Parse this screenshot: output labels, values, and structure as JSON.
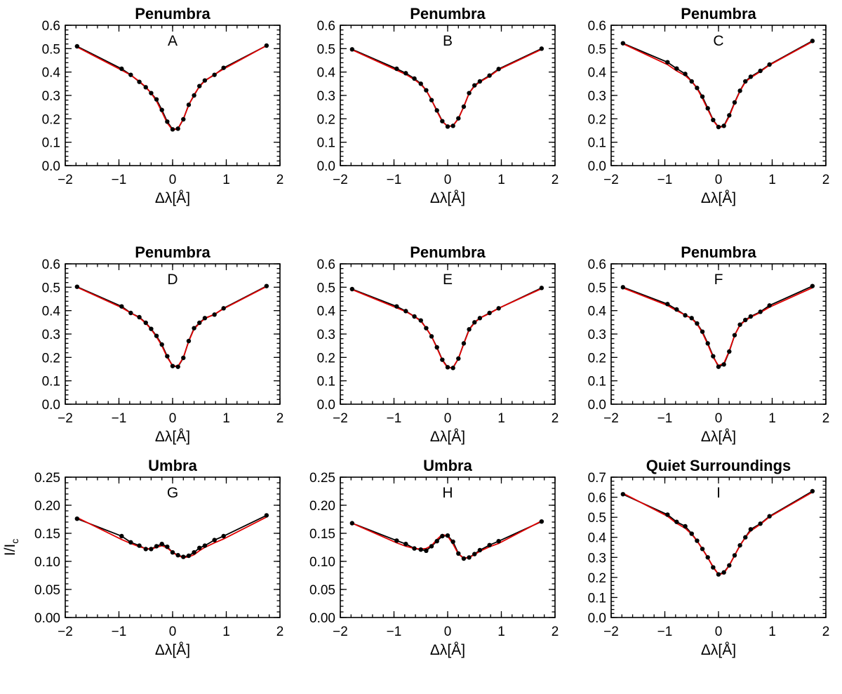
{
  "chart_data": [
    {
      "type": "line",
      "title": "Penumbra",
      "letter": "A",
      "xlabel": "Δλ[Å]",
      "ylabel": "",
      "xlim": [
        -2,
        2
      ],
      "ylim": [
        0,
        0.6
      ],
      "xticks": [
        "−2",
        "−1",
        "0",
        "1",
        "2"
      ],
      "yticks": [
        "0.0",
        "0.1",
        "0.2",
        "0.3",
        "0.4",
        "0.5",
        "0.6"
      ],
      "x": [
        -1.78,
        -0.95,
        -0.78,
        -0.62,
        -0.5,
        -0.4,
        -0.3,
        -0.2,
        -0.1,
        0.0,
        0.1,
        0.2,
        0.3,
        0.4,
        0.5,
        0.6,
        0.78,
        0.95,
        1.75
      ],
      "series": [
        {
          "name": "observed",
          "values": [
            0.51,
            0.414,
            0.388,
            0.358,
            0.335,
            0.31,
            0.283,
            0.238,
            0.188,
            0.155,
            0.158,
            0.198,
            0.26,
            0.3,
            0.34,
            0.364,
            0.388,
            0.418,
            0.513
          ]
        },
        {
          "name": "fit",
          "values": [
            0.507,
            0.408,
            0.387,
            0.36,
            0.336,
            0.31,
            0.276,
            0.23,
            0.182,
            0.152,
            0.158,
            0.2,
            0.258,
            0.303,
            0.338,
            0.362,
            0.39,
            0.413,
            0.513
          ]
        }
      ]
    },
    {
      "type": "line",
      "title": "Penumbra",
      "letter": "B",
      "xlabel": "Δλ[Å]",
      "ylabel": "",
      "xlim": [
        -2,
        2
      ],
      "ylim": [
        0,
        0.6
      ],
      "xticks": [
        "−2",
        "−1",
        "0",
        "1",
        "2"
      ],
      "yticks": [
        "0.0",
        "0.1",
        "0.2",
        "0.3",
        "0.4",
        "0.5",
        "0.6"
      ],
      "x": [
        -1.78,
        -0.95,
        -0.78,
        -0.62,
        -0.5,
        -0.4,
        -0.3,
        -0.2,
        -0.1,
        0.0,
        0.1,
        0.2,
        0.3,
        0.4,
        0.5,
        0.6,
        0.78,
        0.95,
        1.75
      ],
      "series": [
        {
          "name": "observed",
          "values": [
            0.497,
            0.414,
            0.395,
            0.372,
            0.35,
            0.322,
            0.28,
            0.236,
            0.19,
            0.167,
            0.17,
            0.202,
            0.252,
            0.31,
            0.343,
            0.36,
            0.385,
            0.413,
            0.5
          ]
        },
        {
          "name": "fit",
          "values": [
            0.495,
            0.408,
            0.39,
            0.368,
            0.347,
            0.322,
            0.282,
            0.232,
            0.188,
            0.168,
            0.171,
            0.2,
            0.253,
            0.31,
            0.34,
            0.358,
            0.382,
            0.41,
            0.497
          ]
        }
      ]
    },
    {
      "type": "line",
      "title": "Penumbra",
      "letter": "C",
      "xlabel": "Δλ[Å]",
      "ylabel": "",
      "xlim": [
        -2,
        2
      ],
      "ylim": [
        0,
        0.6
      ],
      "xticks": [
        "−2",
        "−1",
        "0",
        "1",
        "2"
      ],
      "yticks": [
        "0.0",
        "0.1",
        "0.2",
        "0.3",
        "0.4",
        "0.5",
        "0.6"
      ],
      "x": [
        -1.78,
        -0.95,
        -0.78,
        -0.62,
        -0.5,
        -0.4,
        -0.3,
        -0.2,
        -0.1,
        0.0,
        0.1,
        0.2,
        0.3,
        0.4,
        0.5,
        0.6,
        0.78,
        0.95,
        1.75
      ],
      "series": [
        {
          "name": "observed",
          "values": [
            0.523,
            0.442,
            0.415,
            0.392,
            0.36,
            0.332,
            0.295,
            0.245,
            0.195,
            0.165,
            0.17,
            0.215,
            0.27,
            0.32,
            0.36,
            0.38,
            0.405,
            0.432,
            0.533
          ]
        },
        {
          "name": "fit",
          "values": [
            0.521,
            0.432,
            0.405,
            0.385,
            0.36,
            0.33,
            0.288,
            0.24,
            0.193,
            0.163,
            0.168,
            0.21,
            0.268,
            0.318,
            0.358,
            0.376,
            0.402,
            0.43,
            0.53
          ]
        }
      ]
    },
    {
      "type": "line",
      "title": "Penumbra",
      "letter": "D",
      "xlabel": "Δλ[Å]",
      "ylabel": "",
      "xlim": [
        -2,
        2
      ],
      "ylim": [
        0,
        0.6
      ],
      "xticks": [
        "−2",
        "−1",
        "0",
        "1",
        "2"
      ],
      "yticks": [
        "0.0",
        "0.1",
        "0.2",
        "0.3",
        "0.4",
        "0.5",
        "0.6"
      ],
      "x": [
        -1.78,
        -0.95,
        -0.78,
        -0.62,
        -0.5,
        -0.4,
        -0.3,
        -0.2,
        -0.1,
        0.0,
        0.1,
        0.2,
        0.3,
        0.4,
        0.5,
        0.6,
        0.78,
        0.95,
        1.75
      ],
      "series": [
        {
          "name": "observed",
          "values": [
            0.502,
            0.418,
            0.39,
            0.372,
            0.348,
            0.322,
            0.292,
            0.255,
            0.205,
            0.163,
            0.16,
            0.198,
            0.27,
            0.325,
            0.348,
            0.368,
            0.383,
            0.41,
            0.505
          ]
        },
        {
          "name": "fit",
          "values": [
            0.5,
            0.413,
            0.39,
            0.37,
            0.346,
            0.32,
            0.288,
            0.25,
            0.2,
            0.165,
            0.162,
            0.2,
            0.268,
            0.322,
            0.346,
            0.366,
            0.385,
            0.408,
            0.503
          ]
        }
      ]
    },
    {
      "type": "line",
      "title": "Penumbra",
      "letter": "E",
      "xlabel": "Δλ[Å]",
      "ylabel": "",
      "xlim": [
        -2,
        2
      ],
      "ylim": [
        0,
        0.6
      ],
      "xticks": [
        "−2",
        "−1",
        "0",
        "1",
        "2"
      ],
      "yticks": [
        "0.0",
        "0.1",
        "0.2",
        "0.3",
        "0.4",
        "0.5",
        "0.6"
      ],
      "x": [
        -1.78,
        -0.95,
        -0.78,
        -0.62,
        -0.5,
        -0.4,
        -0.3,
        -0.2,
        -0.1,
        0.0,
        0.1,
        0.2,
        0.3,
        0.4,
        0.5,
        0.6,
        0.78,
        0.95,
        1.75
      ],
      "series": [
        {
          "name": "observed",
          "values": [
            0.492,
            0.418,
            0.398,
            0.375,
            0.358,
            0.325,
            0.29,
            0.243,
            0.19,
            0.158,
            0.155,
            0.195,
            0.26,
            0.32,
            0.35,
            0.368,
            0.39,
            0.41,
            0.497
          ]
        },
        {
          "name": "fit",
          "values": [
            0.49,
            0.412,
            0.396,
            0.375,
            0.355,
            0.325,
            0.29,
            0.24,
            0.188,
            0.155,
            0.157,
            0.195,
            0.258,
            0.318,
            0.348,
            0.368,
            0.388,
            0.41,
            0.494
          ]
        }
      ]
    },
    {
      "type": "line",
      "title": "Penumbra",
      "letter": "F",
      "xlabel": "Δλ[Å]",
      "ylabel": "",
      "xlim": [
        -2,
        2
      ],
      "ylim": [
        0,
        0.6
      ],
      "xticks": [
        "−2",
        "−1",
        "0",
        "1",
        "2"
      ],
      "yticks": [
        "0.0",
        "0.1",
        "0.2",
        "0.3",
        "0.4",
        "0.5",
        "0.6"
      ],
      "x": [
        -1.78,
        -0.95,
        -0.78,
        -0.62,
        -0.5,
        -0.4,
        -0.3,
        -0.2,
        -0.1,
        0.0,
        0.1,
        0.2,
        0.3,
        0.4,
        0.5,
        0.6,
        0.78,
        0.95,
        1.75
      ],
      "series": [
        {
          "name": "observed",
          "values": [
            0.5,
            0.428,
            0.405,
            0.38,
            0.368,
            0.345,
            0.31,
            0.26,
            0.205,
            0.16,
            0.17,
            0.225,
            0.295,
            0.34,
            0.36,
            0.375,
            0.395,
            0.422,
            0.505
          ]
        },
        {
          "name": "fit",
          "values": [
            0.497,
            0.422,
            0.4,
            0.381,
            0.366,
            0.343,
            0.305,
            0.256,
            0.2,
            0.165,
            0.175,
            0.228,
            0.295,
            0.338,
            0.358,
            0.372,
            0.392,
            0.415,
            0.498
          ]
        }
      ]
    },
    {
      "type": "line",
      "title": "Umbra",
      "letter": "G",
      "xlabel": "Δλ[Å]",
      "ylabel": "I/I",
      "ylabel_sub": "c",
      "xlim": [
        -2,
        2
      ],
      "ylim": [
        0,
        0.25
      ],
      "xticks": [
        "−2",
        "−1",
        "0",
        "1",
        "2"
      ],
      "yticks": [
        "0.00",
        "0.05",
        "0.10",
        "0.15",
        "0.20",
        "0.25"
      ],
      "x": [
        -1.78,
        -0.95,
        -0.78,
        -0.62,
        -0.5,
        -0.4,
        -0.3,
        -0.2,
        -0.1,
        0.0,
        0.1,
        0.2,
        0.3,
        0.4,
        0.5,
        0.6,
        0.78,
        0.95,
        1.75
      ],
      "series": [
        {
          "name": "observed",
          "values": [
            0.176,
            0.145,
            0.134,
            0.128,
            0.122,
            0.122,
            0.127,
            0.131,
            0.126,
            0.116,
            0.111,
            0.108,
            0.11,
            0.116,
            0.124,
            0.128,
            0.138,
            0.145,
            0.182
          ]
        },
        {
          "name": "fit",
          "values": [
            0.178,
            0.139,
            0.132,
            0.126,
            0.123,
            0.122,
            0.125,
            0.128,
            0.124,
            0.116,
            0.11,
            0.107,
            0.108,
            0.112,
            0.119,
            0.125,
            0.133,
            0.14,
            0.179
          ]
        }
      ]
    },
    {
      "type": "line",
      "title": "Umbra",
      "letter": "H",
      "xlabel": "Δλ[Å]",
      "ylabel": "",
      "xlim": [
        -2,
        2
      ],
      "ylim": [
        0,
        0.25
      ],
      "xticks": [
        "−2",
        "−1",
        "0",
        "1",
        "2"
      ],
      "yticks": [
        "0.00",
        "0.05",
        "0.10",
        "0.15",
        "0.20",
        "0.25"
      ],
      "x": [
        -1.78,
        -0.95,
        -0.78,
        -0.62,
        -0.5,
        -0.4,
        -0.3,
        -0.2,
        -0.1,
        0.0,
        0.1,
        0.2,
        0.3,
        0.4,
        0.5,
        0.6,
        0.78,
        0.95,
        1.75
      ],
      "series": [
        {
          "name": "observed",
          "values": [
            0.168,
            0.137,
            0.131,
            0.123,
            0.121,
            0.119,
            0.127,
            0.136,
            0.145,
            0.146,
            0.135,
            0.114,
            0.105,
            0.107,
            0.113,
            0.12,
            0.129,
            0.136,
            0.171
          ]
        },
        {
          "name": "fit",
          "values": [
            0.168,
            0.133,
            0.127,
            0.123,
            0.122,
            0.123,
            0.128,
            0.139,
            0.148,
            0.145,
            0.131,
            0.113,
            0.106,
            0.107,
            0.112,
            0.118,
            0.126,
            0.132,
            0.172
          ]
        }
      ]
    },
    {
      "type": "line",
      "title": "Quiet Surroundings",
      "letter": "I",
      "xlabel": "Δλ[Å]",
      "ylabel": "",
      "xlim": [
        -2,
        2
      ],
      "ylim": [
        0,
        0.7
      ],
      "xticks": [
        "−2",
        "−1",
        "0",
        "1",
        "2"
      ],
      "yticks": [
        "0.0",
        "0.1",
        "0.2",
        "0.3",
        "0.4",
        "0.5",
        "0.6",
        "0.7"
      ],
      "x": [
        -1.78,
        -0.95,
        -0.78,
        -0.62,
        -0.5,
        -0.4,
        -0.3,
        -0.2,
        -0.1,
        0.0,
        0.1,
        0.2,
        0.3,
        0.4,
        0.5,
        0.6,
        0.78,
        0.95,
        1.75
      ],
      "series": [
        {
          "name": "observed",
          "values": [
            0.615,
            0.513,
            0.477,
            0.455,
            0.418,
            0.383,
            0.342,
            0.3,
            0.25,
            0.215,
            0.225,
            0.26,
            0.31,
            0.36,
            0.4,
            0.44,
            0.468,
            0.505,
            0.63
          ]
        },
        {
          "name": "fit",
          "values": [
            0.62,
            0.505,
            0.47,
            0.445,
            0.415,
            0.382,
            0.342,
            0.298,
            0.253,
            0.215,
            0.22,
            0.26,
            0.31,
            0.358,
            0.4,
            0.432,
            0.465,
            0.502,
            0.625
          ]
        }
      ]
    }
  ]
}
